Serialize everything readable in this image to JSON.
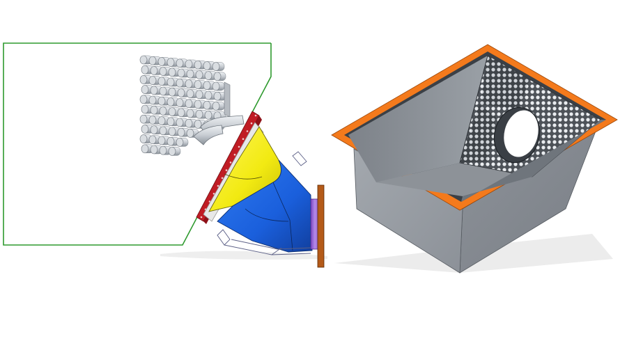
{
  "figure": {
    "left_view": "transition-cone-assembly",
    "right_view": "open-box-assembly"
  },
  "colors": {
    "outline_green": "#2e9a2e",
    "tube_grey": "#c8cdd3",
    "cone_yellow": "#f2ea12",
    "cone_blue": "#1a5fdc",
    "flange_red": "#c01c24",
    "pipe_purple": "#9c6ad6",
    "end_flange_brown": "#b45a18",
    "box_grey": "#9a9fa6",
    "rim_orange": "#f47a1c",
    "rim_dark": "#3b4046",
    "ground_shadow": "#e6e6e6"
  }
}
